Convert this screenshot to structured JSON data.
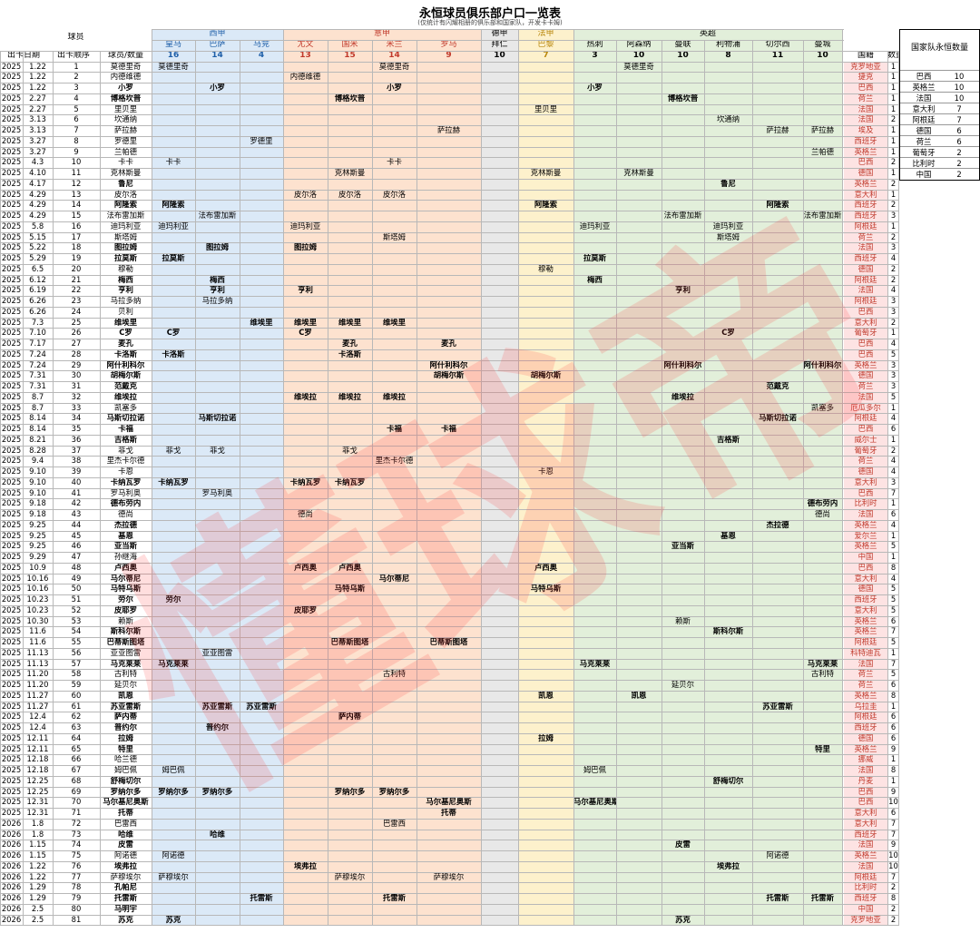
{
  "title": "永恒球员俱乐部户口一览表",
  "subtitle": "(仅统计有闪耀相册的俱乐部和国家队，开发卡卡姆)",
  "header": {
    "player_col": "球员",
    "date_col": "出卡日期",
    "seq_col": "出卡顺序",
    "count_col": "球员/数量",
    "nation_col": "国籍",
    "num_col": "数量"
  },
  "leagues": [
    {
      "name": "西甲",
      "color": "#dbe9f7",
      "text": "#1f5fa8",
      "clubs": [
        {
          "name": "皇马",
          "count": "16"
        },
        {
          "name": "巴萨",
          "count": "14"
        },
        {
          "name": "马竞",
          "count": "4"
        }
      ]
    },
    {
      "name": "意甲",
      "color": "#fde2cf",
      "text": "#c0392b",
      "clubs": [
        {
          "name": "尤文",
          "count": "13"
        },
        {
          "name": "国米",
          "count": "15"
        },
        {
          "name": "米兰",
          "count": "14"
        },
        {
          "name": "罗马",
          "count": "9"
        }
      ]
    },
    {
      "name": "德甲",
      "color": "#e8e8e8",
      "text": "#000000",
      "clubs": [
        {
          "name": "拜仁",
          "count": "10"
        }
      ]
    },
    {
      "name": "法甲",
      "color": "#fdf1cc",
      "text": "#b8860b",
      "clubs": [
        {
          "name": "巴黎",
          "count": "7"
        }
      ]
    },
    {
      "name": "英超",
      "color": "#e2efda",
      "text": "#000000",
      "clubs": [
        {
          "name": "热刺",
          "count": "3"
        },
        {
          "name": "阿森纳",
          "count": "10"
        },
        {
          "name": "曼联",
          "count": "10"
        },
        {
          "name": "利物浦",
          "count": "8"
        },
        {
          "name": "切尔西",
          "count": "11"
        },
        {
          "name": "曼城",
          "count": "10"
        }
      ]
    }
  ],
  "summary": {
    "title": "国家队永恒数量",
    "rows": [
      {
        "nation": "巴西",
        "count": "10"
      },
      {
        "nation": "英格兰",
        "count": "10"
      },
      {
        "nation": "法国",
        "count": "10"
      },
      {
        "nation": "意大利",
        "count": "7"
      },
      {
        "nation": "阿根廷",
        "count": "7"
      },
      {
        "nation": "德国",
        "count": "6"
      },
      {
        "nation": "荷兰",
        "count": "6"
      },
      {
        "nation": "葡萄牙",
        "count": "2"
      },
      {
        "nation": "比利时",
        "count": "2"
      },
      {
        "nation": "中国",
        "count": "2"
      }
    ]
  },
  "watermark_text": "懂球帝",
  "rows": [
    [
      "2025",
      "1.22",
      "1",
      "莫德里奇",
      0,
      [
        [
          0,
          "莫德里奇"
        ],
        [
          5,
          "莫德里奇"
        ],
        [
          10,
          "莫德里奇"
        ]
      ],
      "克罗地亚",
      "1"
    ],
    [
      "2025",
      "1.22",
      "2",
      "内德维德",
      0,
      [
        [
          3,
          "内德维德"
        ]
      ],
      "捷克",
      "1"
    ],
    [
      "2025",
      "1.22",
      "3",
      "小罗",
      1,
      [
        [
          1,
          "小罗"
        ],
        [
          5,
          "小罗"
        ],
        [
          9,
          "小罗"
        ]
      ],
      "巴西",
      "1"
    ],
    [
      "2025",
      "2.27",
      "4",
      "博格坎普",
      1,
      [
        [
          4,
          "博格坎普"
        ],
        [
          11,
          "博格坎普"
        ]
      ],
      "荷兰",
      "1"
    ],
    [
      "2025",
      "2.27",
      "5",
      "里贝里",
      0,
      [
        [
          8,
          "里贝里"
        ]
      ],
      "法国",
      "1"
    ],
    [
      "2025",
      "3.13",
      "6",
      "坎通纳",
      0,
      [
        [
          12,
          "坎通纳"
        ]
      ],
      "法国",
      "2"
    ],
    [
      "2025",
      "3.13",
      "7",
      "萨拉赫",
      0,
      [
        [
          6,
          "萨拉赫"
        ],
        [
          13,
          "萨拉赫"
        ],
        [
          14,
          "萨拉赫"
        ]
      ],
      "埃及",
      "1"
    ],
    [
      "2025",
      "3.27",
      "8",
      "罗德里",
      0,
      [
        [
          2,
          "罗德里"
        ],
        [
          15,
          "罗德里"
        ]
      ],
      "西班牙",
      "1"
    ],
    [
      "2025",
      "3.27",
      "9",
      "兰帕德",
      0,
      [
        [
          14,
          "兰帕德"
        ],
        [
          15,
          "兰帕德"
        ]
      ],
      "英格兰",
      "1"
    ],
    [
      "2025",
      "4.3",
      "10",
      "卡卡",
      0,
      [
        [
          0,
          "卡卡"
        ],
        [
          5,
          "卡卡"
        ]
      ],
      "巴西",
      "2"
    ],
    [
      "2025",
      "4.10",
      "11",
      "克林斯曼",
      0,
      [
        [
          4,
          "克林斯曼"
        ],
        [
          8,
          "克林斯曼"
        ],
        [
          10,
          "克林斯曼"
        ]
      ],
      "德国",
      "1"
    ],
    [
      "2025",
      "4.17",
      "12",
      "鲁尼",
      1,
      [
        [
          12,
          "鲁尼"
        ]
      ],
      "英格兰",
      "2"
    ],
    [
      "2025",
      "4.29",
      "13",
      "皮尔洛",
      0,
      [
        [
          3,
          "皮尔洛"
        ],
        [
          4,
          "皮尔洛"
        ],
        [
          5,
          "皮尔洛"
        ]
      ],
      "意大利",
      "1"
    ],
    [
      "2025",
      "4.29",
      "14",
      "阿隆索",
      1,
      [
        [
          0,
          "阿隆索"
        ],
        [
          8,
          "阿隆索"
        ],
        [
          13,
          "阿隆索"
        ]
      ],
      "西班牙",
      "2"
    ],
    [
      "2025",
      "4.29",
      "15",
      "法布雷加斯",
      0,
      [
        [
          1,
          "法布雷加斯"
        ],
        [
          11,
          "法布雷加斯"
        ],
        [
          14,
          "法布雷加斯"
        ]
      ],
      "西班牙",
      "3"
    ],
    [
      "2025",
      "5.8",
      "16",
      "迪玛利亚",
      0,
      [
        [
          0,
          "迪玛利亚"
        ],
        [
          3,
          "迪玛利亚"
        ],
        [
          9,
          "迪玛利亚"
        ],
        [
          12,
          "迪玛利亚"
        ]
      ],
      "阿根廷",
      "1"
    ],
    [
      "2025",
      "5.15",
      "17",
      "斯塔姆",
      0,
      [
        [
          5,
          "斯塔姆"
        ],
        [
          12,
          "斯塔姆"
        ]
      ],
      "荷兰",
      "2"
    ],
    [
      "2025",
      "5.22",
      "18",
      "图拉姆",
      1,
      [
        [
          1,
          "图拉姆"
        ],
        [
          3,
          "图拉姆"
        ]
      ],
      "法国",
      "3"
    ],
    [
      "2025",
      "5.29",
      "19",
      "拉莫斯",
      1,
      [
        [
          0,
          "拉莫斯"
        ],
        [
          9,
          "拉莫斯"
        ]
      ],
      "西班牙",
      "4"
    ],
    [
      "2025",
      "6.5",
      "20",
      "穆勒",
      0,
      [
        [
          8,
          "穆勒"
        ]
      ],
      "德国",
      "2"
    ],
    [
      "2025",
      "6.12",
      "21",
      "梅西",
      1,
      [
        [
          1,
          "梅西"
        ],
        [
          9,
          "梅西"
        ]
      ],
      "阿根廷",
      "2"
    ],
    [
      "2025",
      "6.19",
      "22",
      "亨利",
      1,
      [
        [
          1,
          "亨利"
        ],
        [
          3,
          "亨利"
        ],
        [
          11,
          "亨利"
        ]
      ],
      "法国",
      "4"
    ],
    [
      "2025",
      "6.26",
      "23",
      "马拉多纳",
      0,
      [
        [
          1,
          "马拉多纳"
        ]
      ],
      "阿根廷",
      "3"
    ],
    [
      "2025",
      "6.26",
      "24",
      "贝利",
      0,
      [],
      "巴西",
      "3"
    ],
    [
      "2025",
      "7.3",
      "25",
      "维埃里",
      1,
      [
        [
          2,
          "维埃里"
        ],
        [
          3,
          "维埃里"
        ],
        [
          4,
          "维埃里"
        ],
        [
          5,
          "维埃里"
        ]
      ],
      "意大利",
      "2"
    ],
    [
      "2025",
      "7.10",
      "26",
      "C罗",
      1,
      [
        [
          0,
          "C罗"
        ],
        [
          3,
          "C罗"
        ],
        [
          12,
          "C罗"
        ]
      ],
      "葡萄牙",
      "1"
    ],
    [
      "2025",
      "7.17",
      "27",
      "麦孔",
      1,
      [
        [
          4,
          "麦孔"
        ],
        [
          6,
          "麦孔"
        ],
        [
          15,
          "麦孔"
        ]
      ],
      "巴西",
      "4"
    ],
    [
      "2025",
      "7.24",
      "28",
      "卡洛斯",
      1,
      [
        [
          0,
          "卡洛斯"
        ],
        [
          4,
          "卡洛斯"
        ]
      ],
      "巴西",
      "5"
    ],
    [
      "2025",
      "7.24",
      "29",
      "阿什利科尔",
      1,
      [
        [
          6,
          "阿什利科尔"
        ],
        [
          11,
          "阿什利科尔"
        ],
        [
          14,
          "阿什利科尔"
        ]
      ],
      "英格兰",
      "3"
    ],
    [
      "2025",
      "7.31",
      "30",
      "胡梅尔斯",
      1,
      [
        [
          6,
          "胡梅尔斯"
        ],
        [
          8,
          "胡梅尔斯"
        ]
      ],
      "德国",
      "3"
    ],
    [
      "2025",
      "7.31",
      "31",
      "范戴克",
      1,
      [
        [
          13,
          "范戴克"
        ]
      ],
      "荷兰",
      "3"
    ],
    [
      "2025",
      "8.7",
      "32",
      "维埃拉",
      1,
      [
        [
          3,
          "维埃拉"
        ],
        [
          4,
          "维埃拉"
        ],
        [
          5,
          "维埃拉"
        ],
        [
          11,
          "维埃拉"
        ],
        [
          15,
          "维埃拉"
        ]
      ],
      "法国",
      "5"
    ],
    [
      "2025",
      "8.7",
      "33",
      "凯塞多",
      0,
      [
        [
          14,
          "凯塞多"
        ]
      ],
      "厄瓜多尔",
      "1"
    ],
    [
      "2025",
      "8.14",
      "34",
      "马斯切拉诺",
      1,
      [
        [
          1,
          "马斯切拉诺"
        ],
        [
          13,
          "马斯切拉诺"
        ]
      ],
      "阿根廷",
      "4"
    ],
    [
      "2025",
      "8.14",
      "35",
      "卡福",
      1,
      [
        [
          5,
          "卡福"
        ],
        [
          6,
          "卡福"
        ]
      ],
      "巴西",
      "6"
    ],
    [
      "2025",
      "8.21",
      "36",
      "吉格斯",
      1,
      [
        [
          12,
          "吉格斯"
        ]
      ],
      "威尔士",
      "1"
    ],
    [
      "2025",
      "8.28",
      "37",
      "菲戈",
      0,
      [
        [
          0,
          "菲戈"
        ],
        [
          1,
          "菲戈"
        ],
        [
          4,
          "菲戈"
        ]
      ],
      "葡萄牙",
      "2"
    ],
    [
      "2025",
      "9.4",
      "38",
      "里杰卡尔德",
      0,
      [
        [
          5,
          "里杰卡尔德"
        ]
      ],
      "荷兰",
      "4"
    ],
    [
      "2025",
      "9.10",
      "39",
      "卡恩",
      0,
      [
        [
          8,
          "卡恩"
        ]
      ],
      "德国",
      "4"
    ],
    [
      "2025",
      "9.10",
      "40",
      "卡纳瓦罗",
      1,
      [
        [
          0,
          "卡纳瓦罗"
        ],
        [
          3,
          "卡纳瓦罗"
        ],
        [
          4,
          "卡纳瓦罗"
        ]
      ],
      "意大利",
      "3"
    ],
    [
      "2025",
      "9.10",
      "41",
      "罗马利奥",
      0,
      [
        [
          1,
          "罗马利奥"
        ]
      ],
      "巴西",
      "7"
    ],
    [
      "2025",
      "9.18",
      "42",
      "德布劳内",
      1,
      [
        [
          14,
          "德布劳内"
        ],
        [
          15,
          "德布劳内"
        ]
      ],
      "比利时",
      "1"
    ],
    [
      "2025",
      "9.18",
      "43",
      "德尚",
      0,
      [
        [
          3,
          "德尚"
        ],
        [
          14,
          "德尚"
        ]
      ],
      "法国",
      "6"
    ],
    [
      "2025",
      "9.25",
      "44",
      "杰拉德",
      1,
      [
        [
          13,
          "杰拉德"
        ]
      ],
      "英格兰",
      "4"
    ],
    [
      "2025",
      "9.25",
      "45",
      "基恩",
      1,
      [
        [
          12,
          "基恩"
        ]
      ],
      "爱尔兰",
      "1"
    ],
    [
      "2025",
      "9.25",
      "46",
      "亚当斯",
      1,
      [
        [
          11,
          "亚当斯"
        ]
      ],
      "英格兰",
      "5"
    ],
    [
      "2025",
      "9.29",
      "47",
      "孙继海",
      0,
      [
        [
          15,
          "孙继海"
        ]
      ],
      "中国",
      "1"
    ],
    [
      "2025",
      "10.9",
      "48",
      "卢西奥",
      1,
      [
        [
          3,
          "卢西奥"
        ],
        [
          4,
          "卢西奥"
        ],
        [
          8,
          "卢西奥"
        ]
      ],
      "巴西",
      "8"
    ],
    [
      "2025",
      "10.16",
      "49",
      "马尔蒂尼",
      1,
      [
        [
          5,
          "马尔蒂尼"
        ]
      ],
      "意大利",
      "4"
    ],
    [
      "2025",
      "10.16",
      "50",
      "马特乌斯",
      1,
      [
        [
          4,
          "马特乌斯"
        ],
        [
          8,
          "马特乌斯"
        ]
      ],
      "德国",
      "5"
    ],
    [
      "2025",
      "10.23",
      "51",
      "劳尔",
      1,
      [
        [
          0,
          "劳尔"
        ]
      ],
      "西班牙",
      "5"
    ],
    [
      "2025",
      "10.23",
      "52",
      "皮耶罗",
      1,
      [
        [
          3,
          "皮耶罗"
        ]
      ],
      "意大利",
      "5"
    ],
    [
      "2025",
      "10.30",
      "53",
      "赖斯",
      0,
      [
        [
          11,
          "赖斯"
        ]
      ],
      "英格兰",
      "6"
    ],
    [
      "2025",
      "11.6",
      "54",
      "斯科尔斯",
      1,
      [
        [
          12,
          "斯科尔斯"
        ]
      ],
      "英格兰",
      "7"
    ],
    [
      "2025",
      "11.6",
      "55",
      "巴蒂斯图塔",
      1,
      [
        [
          4,
          "巴蒂斯图塔"
        ],
        [
          6,
          "巴蒂斯图塔"
        ]
      ],
      "阿根廷",
      "5"
    ],
    [
      "2025",
      "11.13",
      "56",
      "亚亚图雷",
      0,
      [
        [
          1,
          "亚亚图雷"
        ],
        [
          15,
          "亚亚图雷"
        ]
      ],
      "科特迪瓦",
      "1"
    ],
    [
      "2025",
      "11.13",
      "57",
      "马克莱莱",
      1,
      [
        [
          0,
          "马克莱莱"
        ],
        [
          9,
          "马克莱莱"
        ],
        [
          14,
          "马克莱莱"
        ]
      ],
      "法国",
      "7"
    ],
    [
      "2025",
      "11.20",
      "58",
      "古利特",
      0,
      [
        [
          5,
          "古利特"
        ],
        [
          14,
          "古利特"
        ]
      ],
      "荷兰",
      "5"
    ],
    [
      "2025",
      "11.20",
      "59",
      "延贝尔",
      0,
      [
        [
          11,
          "延贝尔"
        ]
      ],
      "荷兰",
      "6"
    ],
    [
      "2025",
      "11.27",
      "60",
      "凯恩",
      1,
      [
        [
          8,
          "凯恩"
        ],
        [
          10,
          "凯恩"
        ]
      ],
      "英格兰",
      "8"
    ],
    [
      "2025",
      "11.27",
      "61",
      "苏亚雷斯",
      1,
      [
        [
          1,
          "苏亚雷斯"
        ],
        [
          2,
          "苏亚雷斯"
        ],
        [
          13,
          "苏亚雷斯"
        ]
      ],
      "乌拉圭",
      "1"
    ],
    [
      "2025",
      "12.4",
      "62",
      "萨内蒂",
      1,
      [
        [
          4,
          "萨内蒂"
        ]
      ],
      "阿根廷",
      "6"
    ],
    [
      "2025",
      "12.4",
      "63",
      "普约尔",
      1,
      [
        [
          1,
          "普约尔"
        ]
      ],
      "西班牙",
      "6"
    ],
    [
      "2025",
      "12.11",
      "64",
      "拉姆",
      1,
      [
        [
          8,
          "拉姆"
        ]
      ],
      "德国",
      "6"
    ],
    [
      "2025",
      "12.11",
      "65",
      "特里",
      1,
      [
        [
          14,
          "特里"
        ]
      ],
      "英格兰",
      "9"
    ],
    [
      "2025",
      "12.18",
      "66",
      "哈兰德",
      0,
      [
        [
          15,
          "哈兰德"
        ]
      ],
      "挪威",
      "1"
    ],
    [
      "2025",
      "12.18",
      "67",
      "姆巴佩",
      0,
      [
        [
          0,
          "姆巴佩"
        ],
        [
          9,
          "姆巴佩"
        ]
      ],
      "法国",
      "8"
    ],
    [
      "2025",
      "12.25",
      "68",
      "舒梅切尔",
      1,
      [
        [
          12,
          "舒梅切尔"
        ],
        [
          15,
          "舒梅切尔"
        ]
      ],
      "丹麦",
      "1"
    ],
    [
      "2025",
      "12.25",
      "69",
      "罗纳尔多",
      1,
      [
        [
          0,
          "罗纳尔多"
        ],
        [
          1,
          "罗纳尔多"
        ],
        [
          4,
          "罗纳尔多"
        ],
        [
          5,
          "罗纳尔多"
        ]
      ],
      "巴西",
      "9"
    ],
    [
      "2025",
      "12.31",
      "70",
      "马尔基尼奥斯",
      1,
      [
        [
          6,
          "马尔基尼奥斯"
        ],
        [
          9,
          "马尔基尼奥斯"
        ]
      ],
      "巴西",
      "10"
    ],
    [
      "2025",
      "12.31",
      "71",
      "托蒂",
      1,
      [
        [
          6,
          "托蒂"
        ]
      ],
      "意大利",
      "6"
    ],
    [
      "2026",
      "1.8",
      "72",
      "巴雷西",
      0,
      [
        [
          5,
          "巴雷西"
        ]
      ],
      "意大利",
      "7"
    ],
    [
      "2026",
      "1.8",
      "73",
      "哈维",
      1,
      [
        [
          1,
          "哈维"
        ]
      ],
      "西班牙",
      "7"
    ],
    [
      "2026",
      "1.15",
      "74",
      "皮雷",
      1,
      [
        [
          11,
          "皮雷"
        ]
      ],
      "法国",
      "9"
    ],
    [
      "2026",
      "1.15",
      "75",
      "阿诺德",
      0,
      [
        [
          0,
          "阿诺德"
        ],
        [
          13,
          "阿诺德"
        ]
      ],
      "英格兰",
      "10"
    ],
    [
      "2026",
      "1.22",
      "76",
      "埃弗拉",
      1,
      [
        [
          3,
          "埃弗拉"
        ],
        [
          12,
          "埃弗拉"
        ]
      ],
      "法国",
      "10"
    ],
    [
      "2026",
      "1.22",
      "77",
      "萨穆埃尔",
      0,
      [
        [
          0,
          "萨穆埃尔"
        ],
        [
          4,
          "萨穆埃尔"
        ],
        [
          6,
          "萨穆埃尔"
        ]
      ],
      "阿根廷",
      "7"
    ],
    [
      "2026",
      "1.29",
      "78",
      "孔帕尼",
      1,
      [
        [
          15,
          "孔帕尼"
        ]
      ],
      "比利时",
      "2"
    ],
    [
      "2026",
      "1.29",
      "79",
      "托雷斯",
      1,
      [
        [
          2,
          "托雷斯"
        ],
        [
          5,
          "托雷斯"
        ],
        [
          13,
          "托雷斯"
        ],
        [
          14,
          "托雷斯"
        ]
      ],
      "西班牙",
      "8"
    ],
    [
      "2026",
      "2.5",
      "80",
      "马明宇",
      1,
      [],
      "中国",
      "2"
    ],
    [
      "2026",
      "2.5",
      "81",
      "苏克",
      1,
      [
        [
          0,
          "苏克"
        ],
        [
          11,
          "苏克"
        ]
      ],
      "克罗地亚",
      "2"
    ]
  ]
}
